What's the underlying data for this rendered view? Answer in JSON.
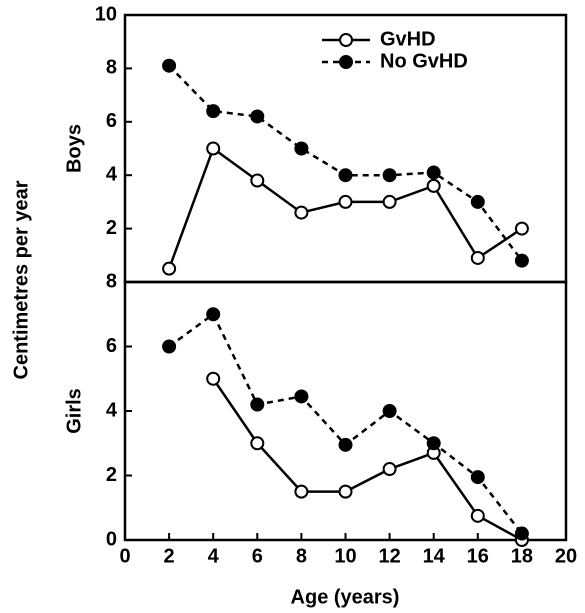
{
  "chart_data": [
    {
      "type": "line",
      "panel_label": "Boys",
      "ylabel": "Centimetres per year",
      "x": [
        2,
        4,
        6,
        8,
        10,
        12,
        14,
        16,
        18
      ],
      "xlim": [
        0,
        20
      ],
      "ylim": [
        0,
        10
      ],
      "yticks": [
        2,
        4,
        6,
        8,
        10
      ],
      "legend": "upper right",
      "series": [
        {
          "name": "GvHD",
          "color": "#000000",
          "marker": "open",
          "dash": false,
          "values": [
            0.5,
            5.0,
            3.8,
            2.6,
            3.0,
            3.0,
            3.6,
            0.9,
            2.0
          ]
        },
        {
          "name": "No GvHD",
          "color": "#000000",
          "marker": "filled",
          "dash": true,
          "values": [
            8.1,
            6.4,
            6.2,
            5.0,
            4.0,
            4.0,
            4.1,
            3.0,
            0.8
          ]
        }
      ]
    },
    {
      "type": "line",
      "panel_label": "Girls",
      "xlabel": "Age (years)",
      "x": [
        2,
        4,
        6,
        8,
        10,
        12,
        14,
        16,
        18
      ],
      "xlim": [
        0,
        20
      ],
      "xticks": [
        0,
        2,
        4,
        6,
        8,
        10,
        12,
        14,
        16,
        18,
        20
      ],
      "ylim": [
        0,
        8
      ],
      "yticks": [
        0,
        2,
        4,
        6,
        8
      ],
      "series": [
        {
          "color": "#000000",
          "marker": "open",
          "dash": false,
          "values": [
            null,
            5.0,
            3.0,
            1.5,
            1.5,
            2.2,
            2.7,
            0.75,
            0.0
          ]
        },
        {
          "color": "#000000",
          "marker": "filled",
          "dash": true,
          "values": [
            6.0,
            7.0,
            4.2,
            4.45,
            2.95,
            4.0,
            3.0,
            1.95,
            0.2
          ]
        }
      ]
    }
  ]
}
